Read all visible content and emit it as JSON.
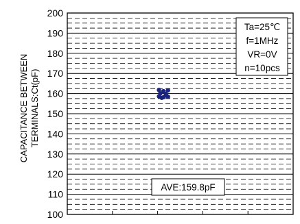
{
  "chart_data": {
    "type": "scatter",
    "ylabel_line1": "CAPACITANCE BETWEEN",
    "ylabel_line2": "TERMINALS:Ct(pF)",
    "ylim": [
      100,
      200
    ],
    "yticks": [
      100,
      110,
      120,
      130,
      140,
      150,
      160,
      170,
      180,
      190,
      200
    ],
    "ytick_labels": [
      "100",
      "110",
      "120",
      "130",
      "140",
      "150",
      "160",
      "170",
      "180",
      "190",
      "200"
    ],
    "x_divisions": 5,
    "grid": "dashed minor every 2.5 pF, solid major every 10 pF",
    "point_color": "#1a237e",
    "points": [
      {
        "x": 2.03,
        "y": 161.8
      },
      {
        "x": 2.13,
        "y": 161.2
      },
      {
        "x": 2.23,
        "y": 161.6
      },
      {
        "x": 2.06,
        "y": 160.1
      },
      {
        "x": 2.18,
        "y": 159.9
      },
      {
        "x": 2.03,
        "y": 158.6
      },
      {
        "x": 2.13,
        "y": 158.2
      },
      {
        "x": 2.23,
        "y": 158.4
      },
      {
        "x": 2.09,
        "y": 157.9
      },
      {
        "x": 2.19,
        "y": 159.1
      }
    ],
    "conditions": [
      "Ta=25℃",
      "f=1MHz",
      "VR=0V",
      "n=10pcs"
    ],
    "average_label": "AVE:159.8pF"
  }
}
